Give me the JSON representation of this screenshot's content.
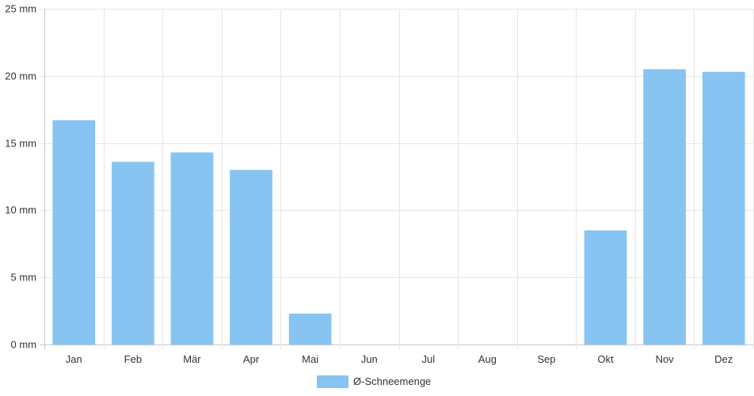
{
  "chart_data": {
    "type": "bar",
    "categories": [
      "Jan",
      "Feb",
      "Mär",
      "Apr",
      "Mai",
      "Jun",
      "Jul",
      "Aug",
      "Sep",
      "Okt",
      "Nov",
      "Dez"
    ],
    "series": [
      {
        "name": "Ø-Schneemenge",
        "values": [
          16.7,
          13.6,
          14.3,
          13.0,
          2.3,
          0,
          0,
          0,
          0,
          8.5,
          20.5,
          20.3
        ],
        "color": "#87c4f1"
      }
    ],
    "y_unit": "mm",
    "ylim": [
      0,
      25
    ],
    "y_ticks": [
      0,
      5,
      10,
      15,
      20,
      25
    ],
    "grid": true,
    "legend_position": "bottom-center"
  }
}
